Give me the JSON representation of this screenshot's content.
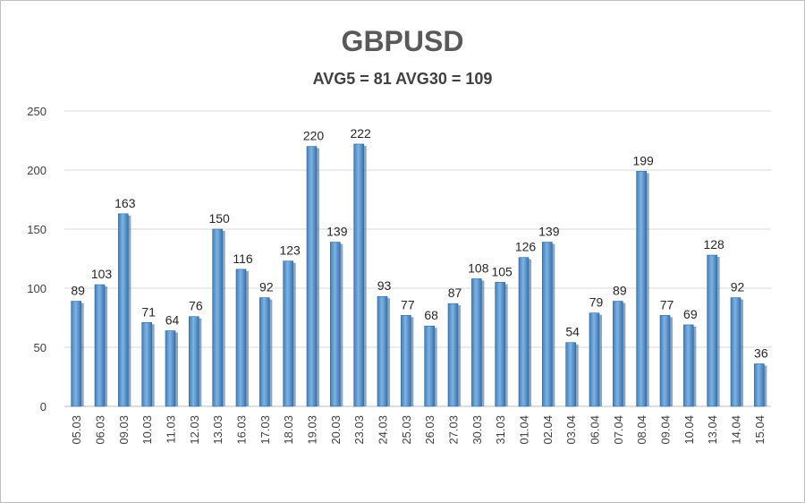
{
  "chart_data": {
    "type": "bar",
    "title": "GBPUSD",
    "subtitle": "AVG5 = 81 AVG30 = 109",
    "xlabel": "",
    "ylabel": "",
    "ylim": [
      0,
      250
    ],
    "yticks": [
      0,
      50,
      100,
      150,
      200,
      250
    ],
    "grid": true,
    "bar_color": "#5b9bd5",
    "categories": [
      "05.03",
      "06.03",
      "09.03",
      "10.03",
      "11.03",
      "12.03",
      "13.03",
      "16.03",
      "17.03",
      "18.03",
      "19.03",
      "20.03",
      "23.03",
      "24.03",
      "25.03",
      "26.03",
      "27.03",
      "30.03",
      "31.03",
      "01.04",
      "02.04",
      "03.04",
      "06.04",
      "07.04",
      "08.04",
      "09.04",
      "10.04",
      "13.04",
      "14.04",
      "15.04"
    ],
    "values": [
      89,
      103,
      163,
      71,
      64,
      76,
      150,
      116,
      92,
      123,
      220,
      139,
      222,
      93,
      77,
      68,
      87,
      108,
      105,
      126,
      139,
      54,
      79,
      89,
      199,
      77,
      69,
      128,
      92,
      36
    ]
  }
}
